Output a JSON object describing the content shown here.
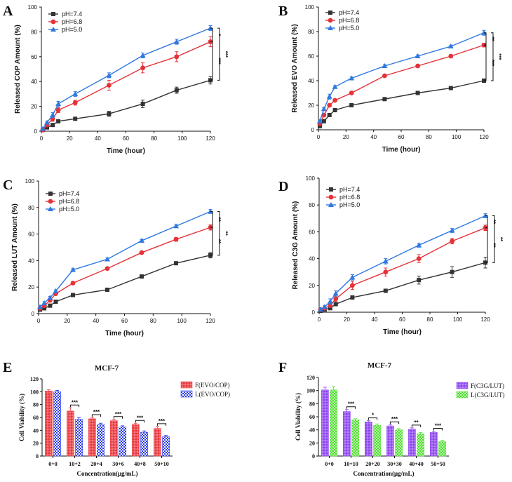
{
  "figure_panels": [
    {
      "letter": "A"
    },
    {
      "letter": "B"
    },
    {
      "letter": "C"
    },
    {
      "letter": "D"
    },
    {
      "letter": "E"
    },
    {
      "letter": "F"
    }
  ],
  "chart_data": [
    {
      "panel": "A",
      "type": "line",
      "title": "",
      "xlabel": "Time (hour)",
      "ylabel": "Released COP Amount (%)",
      "xlim": [
        0,
        120
      ],
      "ylim": [
        0,
        100
      ],
      "xticks": [
        0,
        20,
        40,
        60,
        80,
        100,
        120
      ],
      "yticks": [
        0,
        20,
        40,
        60,
        80,
        100
      ],
      "x": [
        1,
        4,
        8,
        12,
        24,
        48,
        72,
        96,
        120
      ],
      "series": [
        {
          "name": "pH=7.4",
          "color": "#333333",
          "marker": "square",
          "values": [
            1,
            3,
            5,
            8,
            10,
            14,
            22,
            33,
            41
          ],
          "errors": [
            1,
            1,
            1,
            1,
            1,
            2,
            3,
            2.5,
            3
          ]
        },
        {
          "name": "pH=6.8",
          "color": "#e53238",
          "marker": "circle",
          "values": [
            1,
            5,
            10,
            17,
            23,
            37,
            51,
            60,
            72
          ],
          "errors": [
            1,
            1,
            2,
            2,
            2,
            4,
            4,
            4,
            4
          ]
        },
        {
          "name": "pH=5.0",
          "color": "#2f78e0",
          "marker": "triangle",
          "values": [
            2,
            7,
            13,
            22,
            30,
            45,
            61,
            72,
            83
          ],
          "errors": [
            1,
            1,
            2,
            2,
            2,
            2,
            2,
            2,
            2
          ]
        }
      ],
      "significance": [
        "*",
        "***",
        "***"
      ]
    },
    {
      "panel": "B",
      "type": "line",
      "title": "",
      "xlabel": "Time (hour)",
      "ylabel": "Released EVO Amount (%)",
      "xlim": [
        0,
        120
      ],
      "ylim": [
        0,
        100
      ],
      "xticks": [
        0,
        20,
        40,
        60,
        80,
        100,
        120
      ],
      "yticks": [
        0,
        20,
        40,
        60,
        80,
        100
      ],
      "x": [
        1,
        4,
        8,
        12,
        24,
        48,
        72,
        96,
        120
      ],
      "series": [
        {
          "name": "pH=7.4",
          "color": "#333333",
          "marker": "square",
          "values": [
            3,
            7,
            12,
            16,
            20,
            25,
            30,
            34,
            40
          ],
          "errors": [
            1,
            1,
            1,
            1,
            1,
            1,
            1,
            1,
            1.5
          ]
        },
        {
          "name": "pH=6.8",
          "color": "#e53238",
          "marker": "circle",
          "values": [
            5,
            12,
            20,
            24,
            30,
            44,
            52,
            60,
            69
          ],
          "errors": [
            1,
            1,
            1,
            1,
            1,
            1,
            1,
            1,
            1.5
          ]
        },
        {
          "name": "pH=5.0",
          "color": "#2f78e0",
          "marker": "triangle",
          "values": [
            7,
            17,
            27,
            35,
            42,
            52,
            60,
            68,
            79
          ],
          "errors": [
            1,
            1,
            2,
            1,
            1,
            1,
            1,
            1,
            2
          ]
        }
      ],
      "significance": [
        "**",
        "***",
        "***"
      ]
    },
    {
      "panel": "C",
      "type": "line",
      "title": "",
      "xlabel": "Time (hour)",
      "ylabel": "Released LUT Amount (%)",
      "xlim": [
        0,
        120
      ],
      "ylim": [
        0,
        100
      ],
      "xticks": [
        0,
        20,
        40,
        60,
        80,
        100,
        120
      ],
      "yticks": [
        0,
        20,
        40,
        60,
        80,
        100
      ],
      "x": [
        1,
        4,
        8,
        12,
        24,
        48,
        72,
        96,
        120
      ],
      "series": [
        {
          "name": "pH=7.4",
          "color": "#333333",
          "marker": "square",
          "values": [
            3,
            4,
            6,
            9,
            14,
            18,
            28,
            38,
            44
          ],
          "errors": [
            1,
            1,
            1,
            1,
            1,
            1,
            1,
            1,
            2
          ]
        },
        {
          "name": "pH=6.8",
          "color": "#e53238",
          "marker": "circle",
          "values": [
            4,
            6,
            10,
            15,
            23,
            34,
            46,
            56,
            65
          ],
          "errors": [
            1,
            1,
            1,
            1,
            1,
            1,
            1,
            1.5,
            2
          ]
        },
        {
          "name": "pH=5.0",
          "color": "#2f78e0",
          "marker": "triangle",
          "values": [
            5,
            8,
            12,
            17,
            33,
            41,
            55,
            66,
            77
          ],
          "errors": [
            1,
            1,
            1,
            1,
            1,
            1,
            1,
            1,
            1.5
          ]
        }
      ],
      "significance": [
        "**",
        "**",
        "**"
      ]
    },
    {
      "panel": "D",
      "type": "line",
      "title": "",
      "xlabel": "Time (hour)",
      "ylabel": "Released C3G Amount (%)",
      "xlim": [
        0,
        120
      ],
      "ylim": [
        0,
        100
      ],
      "xticks": [
        0,
        20,
        40,
        60,
        80,
        100,
        120
      ],
      "yticks": [
        0,
        20,
        40,
        60,
        80,
        100
      ],
      "x": [
        1,
        4,
        8,
        12,
        24,
        48,
        72,
        96,
        120
      ],
      "series": [
        {
          "name": "pH=7.4",
          "color": "#333333",
          "marker": "square",
          "values": [
            1,
            2,
            3,
            6,
            11,
            16,
            24,
            30,
            37
          ],
          "errors": [
            1,
            1,
            1,
            1,
            1,
            1,
            3,
            4,
            4
          ]
        },
        {
          "name": "pH=6.8",
          "color": "#e53238",
          "marker": "circle",
          "values": [
            2,
            3,
            5,
            10,
            20,
            30,
            40,
            53,
            63
          ],
          "errors": [
            1,
            1,
            1,
            2,
            3,
            3,
            3,
            2,
            2
          ]
        },
        {
          "name": "pH=5.0",
          "color": "#2f78e0",
          "marker": "triangle",
          "values": [
            2,
            4,
            8,
            14,
            26,
            38,
            50,
            61,
            72
          ],
          "errors": [
            1,
            1,
            2,
            2,
            2,
            2,
            1.5,
            1.5,
            1.5
          ]
        }
      ],
      "significance": [
        "**",
        "**",
        "**"
      ]
    },
    {
      "panel": "E",
      "type": "bar",
      "title": "MCF-7",
      "xlabel": "Concentration(μg/mL)",
      "ylabel": "Cell Viability (%)",
      "ylim": [
        0,
        120
      ],
      "yticks": [
        0,
        20,
        40,
        60,
        80,
        100,
        120
      ],
      "categories": [
        "0+0",
        "10+2",
        "20+4",
        "30+6",
        "40+8",
        "50+10"
      ],
      "series": [
        {
          "name": "F(EVO/COP)",
          "color": "#f0545a",
          "pattern": "diamond",
          "values": [
            101,
            70,
            58,
            55,
            49,
            43
          ],
          "errors": [
            2,
            5,
            2,
            2,
            2,
            3
          ]
        },
        {
          "name": "L(EVO/COP)",
          "color": "#3344ee",
          "pattern": "check",
          "values": [
            100,
            57,
            49,
            45,
            37,
            30
          ],
          "errors": [
            2,
            3,
            2,
            2,
            2,
            2
          ]
        }
      ],
      "significance": [
        "",
        "***",
        "***",
        "***",
        "***",
        "***"
      ]
    },
    {
      "panel": "F",
      "type": "bar",
      "title": "MCF-7",
      "xlabel": "Concentration(μg/mL)",
      "ylabel": "Cell Viability (%)",
      "ylim": [
        0,
        120
      ],
      "yticks": [
        0,
        20,
        40,
        60,
        80,
        100,
        120
      ],
      "categories": [
        "0+0",
        "10+10",
        "20+20",
        "30+30",
        "40+40",
        "50+50"
      ],
      "series": [
        {
          "name": "F(C3G/LUT)",
          "color": "#9a5af0",
          "pattern": "diamond",
          "values": [
            101,
            68,
            52,
            46,
            41,
            36
          ],
          "errors": [
            4,
            3,
            2,
            2,
            2,
            2
          ]
        },
        {
          "name": "L(C3G/LUT)",
          "color": "#66e64a",
          "pattern": "check",
          "values": [
            101,
            55,
            47,
            40,
            34,
            22
          ],
          "errors": [
            5,
            2,
            2,
            2,
            2,
            2
          ]
        }
      ],
      "significance": [
        "",
        "***",
        "*",
        "***",
        "**",
        "***"
      ]
    }
  ]
}
